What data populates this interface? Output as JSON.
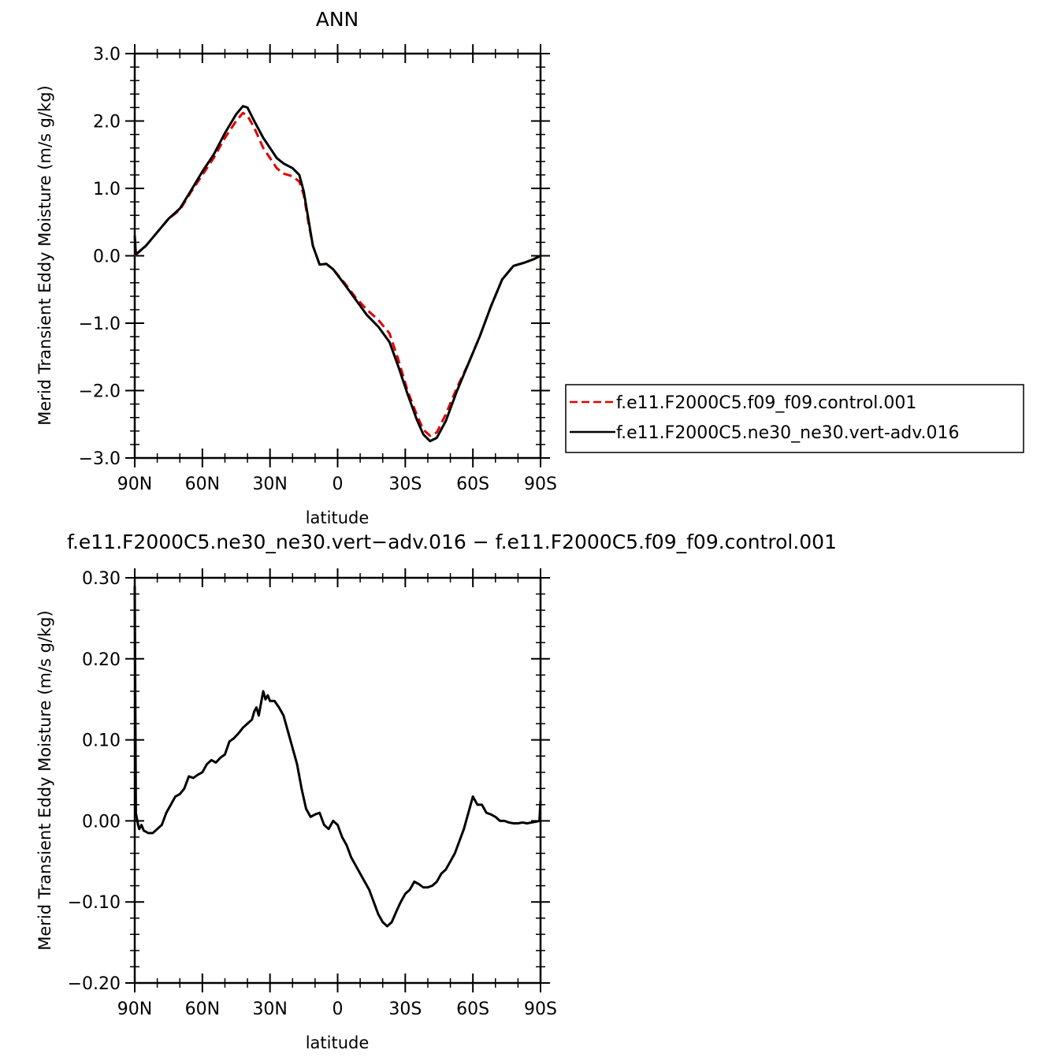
{
  "chart_data": [
    {
      "type": "line",
      "title": "ANN",
      "xlabel": "latitude",
      "ylabel": "Merid Transient Eddy Moisture (m/s g/kg)",
      "xlim": [
        90,
        -90
      ],
      "ylim": [
        -3.0,
        3.0
      ],
      "x_ticks": [
        90,
        60,
        30,
        0,
        -30,
        -60,
        -90
      ],
      "x_tick_labels": [
        "90N",
        "60N",
        "30N",
        "0",
        "30S",
        "60S",
        "90S"
      ],
      "y_ticks": [
        3.0,
        2.0,
        1.0,
        0.0,
        -1.0,
        -2.0,
        -3.0
      ],
      "y_tick_labels": [
        "3.0",
        "2.0",
        "1.0",
        "0.0",
        "−1.0",
        "−2.0",
        "−3.0"
      ],
      "grid": false,
      "legend_position": "right",
      "series": [
        {
          "name": "f.e11.F2000C5.f09_f09.control.001",
          "color": "#e00000",
          "dash": "dashed",
          "points": [
            [
              90,
              0.0
            ],
            [
              85,
              0.15
            ],
            [
              80,
              0.35
            ],
            [
              75,
              0.55
            ],
            [
              70,
              0.68
            ],
            [
              65,
              0.95
            ],
            [
              60,
              1.2
            ],
            [
              55,
              1.45
            ],
            [
              50,
              1.75
            ],
            [
              45,
              2.0
            ],
            [
              42,
              2.12
            ],
            [
              40,
              2.08
            ],
            [
              37,
              1.9
            ],
            [
              33,
              1.6
            ],
            [
              30,
              1.45
            ],
            [
              27,
              1.3
            ],
            [
              24,
              1.22
            ],
            [
              20,
              1.18
            ],
            [
              17,
              1.1
            ],
            [
              15,
              0.9
            ],
            [
              13,
              0.5
            ],
            [
              11,
              0.15
            ],
            [
              8,
              -0.13
            ],
            [
              5,
              -0.12
            ],
            [
              2,
              -0.2
            ],
            [
              -3,
              -0.4
            ],
            [
              -8,
              -0.62
            ],
            [
              -13,
              -0.8
            ],
            [
              -18,
              -0.95
            ],
            [
              -23,
              -1.15
            ],
            [
              -27,
              -1.55
            ],
            [
              -31,
              -2.0
            ],
            [
              -35,
              -2.35
            ],
            [
              -38,
              -2.58
            ],
            [
              -41,
              -2.67
            ],
            [
              -44,
              -2.62
            ],
            [
              -48,
              -2.35
            ],
            [
              -53,
              -1.95
            ],
            [
              -58,
              -1.6
            ],
            [
              -63,
              -1.2
            ],
            [
              -68,
              -0.75
            ],
            [
              -73,
              -0.35
            ],
            [
              -78,
              -0.15
            ],
            [
              -83,
              -0.1
            ],
            [
              -87,
              -0.05
            ],
            [
              -90,
              0.0
            ]
          ]
        },
        {
          "name": "f.e11.F2000C5.ne30_ne30.vert-adv.016",
          "color": "#000000",
          "dash": "solid",
          "points": [
            [
              90,
              0.3
            ],
            [
              89.5,
              0.02
            ],
            [
              85,
              0.15
            ],
            [
              80,
              0.35
            ],
            [
              75,
              0.55
            ],
            [
              70,
              0.7
            ],
            [
              65,
              0.97
            ],
            [
              60,
              1.25
            ],
            [
              55,
              1.5
            ],
            [
              50,
              1.82
            ],
            [
              45,
              2.1
            ],
            [
              42,
              2.22
            ],
            [
              40,
              2.2
            ],
            [
              37,
              2.0
            ],
            [
              33,
              1.75
            ],
            [
              30,
              1.6
            ],
            [
              27,
              1.45
            ],
            [
              24,
              1.37
            ],
            [
              20,
              1.3
            ],
            [
              17,
              1.2
            ],
            [
              15,
              0.95
            ],
            [
              13,
              0.55
            ],
            [
              11,
              0.15
            ],
            [
              8,
              -0.13
            ],
            [
              5,
              -0.12
            ],
            [
              2,
              -0.2
            ],
            [
              -3,
              -0.42
            ],
            [
              -8,
              -0.65
            ],
            [
              -13,
              -0.88
            ],
            [
              -18,
              -1.05
            ],
            [
              -23,
              -1.28
            ],
            [
              -27,
              -1.65
            ],
            [
              -31,
              -2.05
            ],
            [
              -35,
              -2.42
            ],
            [
              -38,
              -2.65
            ],
            [
              -41,
              -2.75
            ],
            [
              -44,
              -2.7
            ],
            [
              -48,
              -2.45
            ],
            [
              -53,
              -2.0
            ],
            [
              -58,
              -1.6
            ],
            [
              -63,
              -1.2
            ],
            [
              -68,
              -0.75
            ],
            [
              -73,
              -0.35
            ],
            [
              -78,
              -0.15
            ],
            [
              -83,
              -0.1
            ],
            [
              -87,
              -0.05
            ],
            [
              -90,
              0.0
            ]
          ]
        }
      ]
    },
    {
      "type": "line",
      "title": "f.e11.F2000C5.ne30_ne30.vert−adv.016 − f.e11.F2000C5.f09_f09.control.001",
      "xlabel": "latitude",
      "ylabel": "Merid Transient Eddy Moisture (m/s g/kg)",
      "xlim": [
        90,
        -90
      ],
      "ylim": [
        -0.2,
        0.3
      ],
      "x_ticks": [
        90,
        60,
        30,
        0,
        -30,
        -60,
        -90
      ],
      "x_tick_labels": [
        "90N",
        "60N",
        "30N",
        "0",
        "30S",
        "60S",
        "90S"
      ],
      "y_ticks": [
        0.3,
        0.2,
        0.1,
        0.0,
        -0.1,
        -0.2
      ],
      "y_tick_labels": [
        "0.30",
        "0.20",
        "0.10",
        "0.00",
        "−0.10",
        "−0.20"
      ],
      "grid": false,
      "series": [
        {
          "name": "",
          "color": "#000000",
          "dash": "solid",
          "points": [
            [
              90,
              0.29
            ],
            [
              89.5,
              0.01
            ],
            [
              88.5,
              -0.005
            ],
            [
              88,
              -0.01
            ],
            [
              87,
              -0.005
            ],
            [
              86,
              -0.012
            ],
            [
              84,
              -0.015
            ],
            [
              82,
              -0.015
            ],
            [
              80,
              -0.01
            ],
            [
              78,
              -0.005
            ],
            [
              76,
              0.01
            ],
            [
              74,
              0.02
            ],
            [
              72,
              0.03
            ],
            [
              70,
              0.033
            ],
            [
              68,
              0.04
            ],
            [
              66,
              0.055
            ],
            [
              64,
              0.053
            ],
            [
              62,
              0.057
            ],
            [
              60,
              0.06
            ],
            [
              58,
              0.07
            ],
            [
              56,
              0.075
            ],
            [
              54,
              0.072
            ],
            [
              52,
              0.078
            ],
            [
              50,
              0.082
            ],
            [
              48,
              0.098
            ],
            [
              46,
              0.102
            ],
            [
              44,
              0.108
            ],
            [
              42,
              0.115
            ],
            [
              40,
              0.12
            ],
            [
              38,
              0.125
            ],
            [
              37,
              0.135
            ],
            [
              36,
              0.14
            ],
            [
              35,
              0.13
            ],
            [
              34,
              0.145
            ],
            [
              33,
              0.16
            ],
            [
              32,
              0.15
            ],
            [
              31,
              0.155
            ],
            [
              30,
              0.148
            ],
            [
              28,
              0.148
            ],
            [
              26,
              0.14
            ],
            [
              24,
              0.13
            ],
            [
              22,
              0.11
            ],
            [
              20,
              0.09
            ],
            [
              18,
              0.07
            ],
            [
              16,
              0.04
            ],
            [
              14,
              0.015
            ],
            [
              12,
              0.005
            ],
            [
              10,
              0.008
            ],
            [
              8,
              0.01
            ],
            [
              6,
              -0.005
            ],
            [
              4,
              -0.01
            ],
            [
              2,
              0.0
            ],
            [
              0,
              -0.005
            ],
            [
              -2,
              -0.02
            ],
            [
              -4,
              -0.03
            ],
            [
              -6,
              -0.045
            ],
            [
              -8,
              -0.055
            ],
            [
              -10,
              -0.065
            ],
            [
              -12,
              -0.075
            ],
            [
              -14,
              -0.085
            ],
            [
              -16,
              -0.1
            ],
            [
              -18,
              -0.115
            ],
            [
              -20,
              -0.125
            ],
            [
              -22,
              -0.13
            ],
            [
              -24,
              -0.125
            ],
            [
              -26,
              -0.112
            ],
            [
              -28,
              -0.1
            ],
            [
              -30,
              -0.09
            ],
            [
              -32,
              -0.085
            ],
            [
              -34,
              -0.075
            ],
            [
              -36,
              -0.078
            ],
            [
              -38,
              -0.082
            ],
            [
              -40,
              -0.082
            ],
            [
              -42,
              -0.08
            ],
            [
              -44,
              -0.075
            ],
            [
              -46,
              -0.065
            ],
            [
              -48,
              -0.06
            ],
            [
              -50,
              -0.05
            ],
            [
              -52,
              -0.04
            ],
            [
              -54,
              -0.025
            ],
            [
              -56,
              -0.01
            ],
            [
              -58,
              0.01
            ],
            [
              -60,
              0.03
            ],
            [
              -62,
              0.02
            ],
            [
              -64,
              0.02
            ],
            [
              -66,
              0.01
            ],
            [
              -68,
              0.008
            ],
            [
              -70,
              0.005
            ],
            [
              -72,
              0.0
            ],
            [
              -74,
              0.0
            ],
            [
              -76,
              -0.002
            ],
            [
              -78,
              -0.003
            ],
            [
              -80,
              -0.003
            ],
            [
              -82,
              -0.002
            ],
            [
              -84,
              -0.003
            ],
            [
              -86,
              -0.002
            ],
            [
              -88,
              -0.001
            ],
            [
              -89.5,
              0.0
            ],
            [
              -90,
              0.025
            ]
          ]
        }
      ]
    }
  ]
}
